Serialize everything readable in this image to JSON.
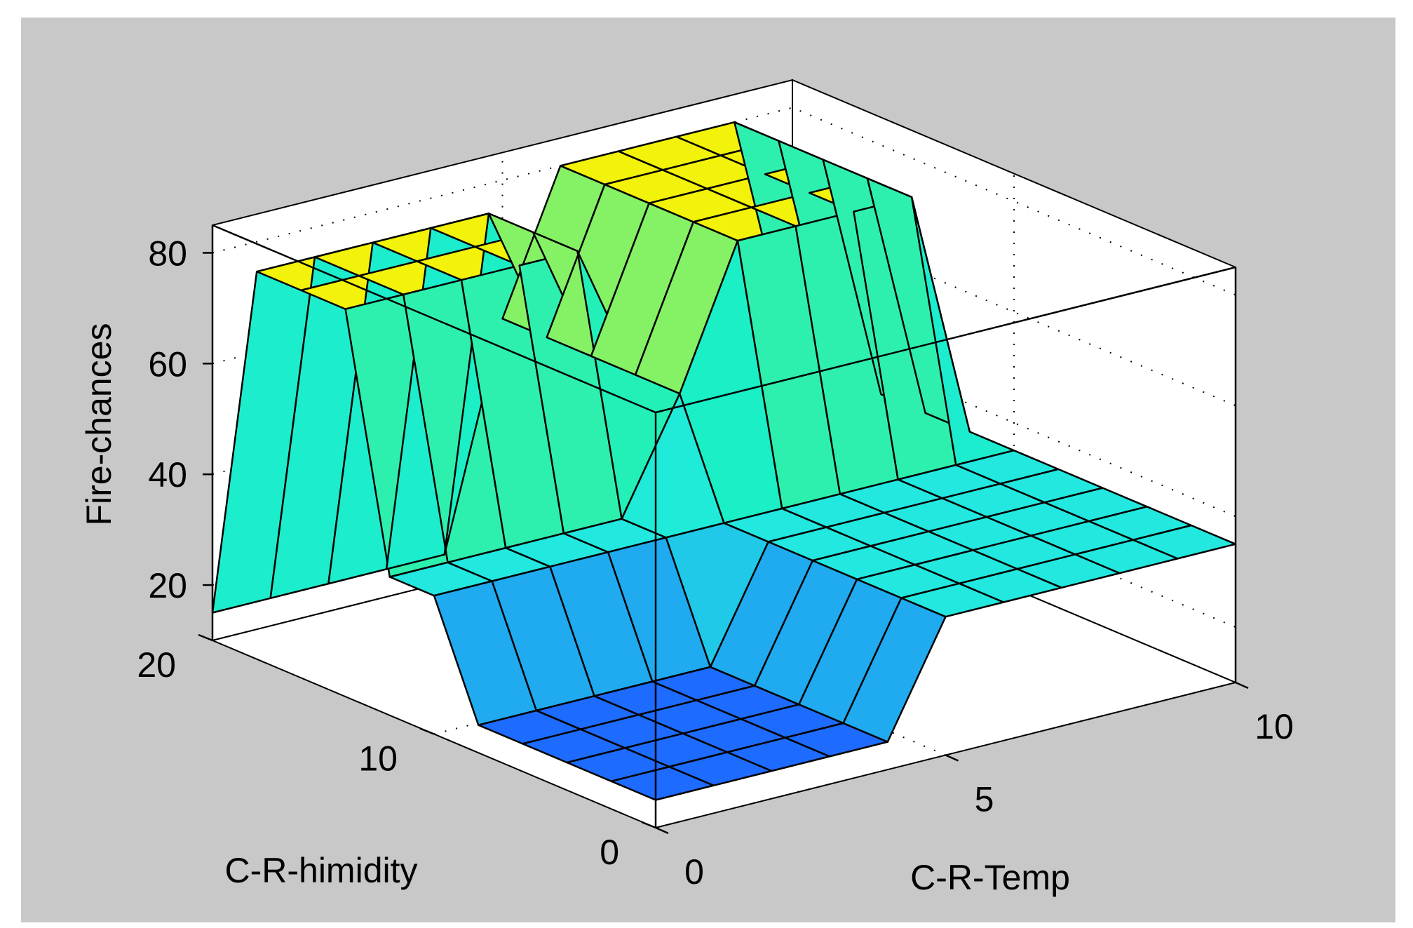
{
  "chart_data": {
    "type": "surface3d",
    "title": "",
    "xlabel": "C-R-Temp",
    "ylabel": "C-R-himidity",
    "zlabel": "Fire-chances",
    "x_ticks": [
      "0",
      "5",
      "10"
    ],
    "y_ticks": [
      "0",
      "10",
      "20"
    ],
    "z_ticks": [
      "20",
      "40",
      "60",
      "80"
    ],
    "xlim": [
      0,
      10
    ],
    "ylim": [
      0,
      20
    ],
    "zlim": [
      10,
      85
    ],
    "grid": true,
    "x": [
      0,
      1,
      2,
      3,
      4,
      5,
      6,
      7,
      8,
      9,
      10
    ],
    "y": [
      0,
      2,
      4,
      6,
      8,
      10,
      12,
      14,
      16,
      18,
      20
    ],
    "z_rows_by_y": [
      [
        15,
        15,
        15,
        15,
        15,
        35,
        35,
        35,
        35,
        35,
        35
      ],
      [
        15,
        15,
        15,
        15,
        15,
        35,
        35,
        35,
        35,
        35,
        35
      ],
      [
        15,
        15,
        15,
        15,
        15,
        35,
        35,
        35,
        35,
        35,
        35
      ],
      [
        15,
        15,
        15,
        15,
        15,
        35,
        35,
        35,
        35,
        35,
        35
      ],
      [
        15,
        15,
        15,
        15,
        15,
        35,
        35,
        35,
        35,
        35,
        35
      ],
      [
        35,
        35,
        35,
        35,
        35,
        35,
        35,
        35,
        35,
        35,
        35
      ],
      [
        35,
        35,
        35,
        35,
        35,
        55,
        80,
        80,
        80,
        80,
        35
      ],
      [
        80,
        80,
        80,
        80,
        80,
        55,
        80,
        80,
        80,
        80,
        35
      ],
      [
        80,
        80,
        80,
        80,
        80,
        55,
        80,
        80,
        80,
        80,
        35
      ],
      [
        80,
        80,
        80,
        80,
        80,
        55,
        80,
        80,
        80,
        80,
        35
      ],
      [
        15,
        15,
        15,
        15,
        15,
        55,
        80,
        80,
        80,
        80,
        35
      ]
    ],
    "colormap": [
      {
        "z": 15,
        "color": "#1e6bff"
      },
      {
        "z": 35,
        "color": "#22e8e0"
      },
      {
        "z": 55,
        "color": "#18f0c0"
      },
      {
        "z": 80,
        "color": "#f2f20a"
      }
    ]
  },
  "colors": {
    "figure_background": "#c8c8c8",
    "axes_background": "#ffffff",
    "edge": "#000000"
  }
}
